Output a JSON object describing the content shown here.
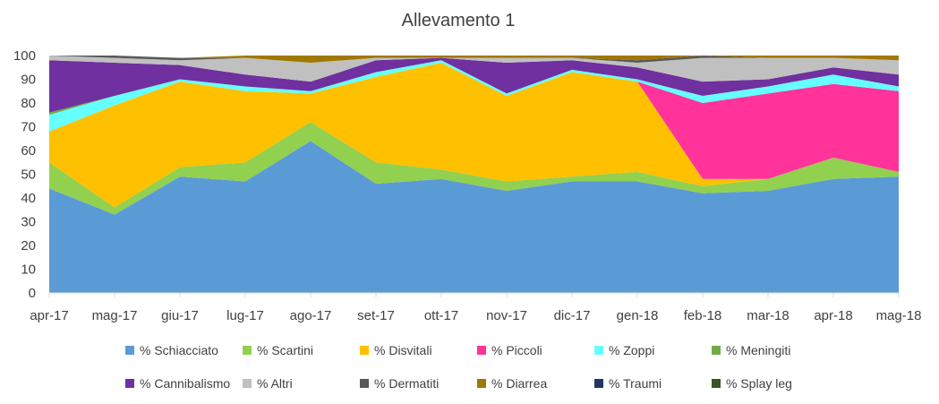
{
  "chart_data": {
    "type": "area",
    "stacked": true,
    "title": "Allevamento 1",
    "xlabel": "",
    "ylabel": "",
    "ylim": [
      0,
      100
    ],
    "yticks": [
      "0",
      "10",
      "20",
      "30",
      "40",
      "50",
      "60",
      "70",
      "80",
      "90",
      "100"
    ],
    "categories": [
      "apr-17",
      "mag-17",
      "giu-17",
      "lug-17",
      "ago-17",
      "set-17",
      "ott-17",
      "nov-17",
      "dic-17",
      "gen-18",
      "feb-18",
      "mar-18",
      "apr-18",
      "mag-18"
    ],
    "series": [
      {
        "name": "% Schiacciato",
        "color": "#5b9bd5",
        "values": [
          44,
          33,
          49,
          47,
          64,
          46,
          48,
          43,
          47,
          47,
          42,
          43,
          48,
          49
        ]
      },
      {
        "name": "% Scartini",
        "color": "#92d050",
        "values": [
          11,
          3,
          4,
          8,
          8,
          9,
          4,
          4,
          2,
          4,
          3,
          5,
          9,
          2
        ]
      },
      {
        "name": "% Disvitali",
        "color": "#ffc000",
        "values": [
          13,
          43,
          36,
          30,
          12,
          36,
          45,
          36,
          44,
          38,
          3,
          0,
          0,
          0
        ]
      },
      {
        "name": "% Piccoli",
        "color": "#ff3399",
        "values": [
          0,
          0,
          0,
          0,
          0,
          0,
          0,
          0,
          0,
          0,
          32,
          36,
          31,
          34
        ]
      },
      {
        "name": "% Zoppi",
        "color": "#66ffff",
        "values": [
          7,
          4,
          1,
          2,
          1,
          2,
          1,
          1,
          1,
          1,
          3,
          3,
          4,
          2
        ]
      },
      {
        "name": "% Meningiti",
        "color": "#70ad47",
        "values": [
          1,
          0,
          0,
          0,
          0,
          0,
          0,
          0,
          0,
          0,
          0,
          0,
          0,
          0
        ]
      },
      {
        "name": "% Cannibalismo",
        "color": "#7030a0",
        "values": [
          22,
          14,
          6,
          5,
          4,
          5,
          1,
          13,
          4,
          5,
          6,
          3,
          3,
          5
        ]
      },
      {
        "name": "% Altri",
        "color": "#c0c0c0",
        "values": [
          2,
          2,
          2,
          7,
          8,
          1,
          0,
          2,
          1,
          2,
          10,
          9,
          4,
          6
        ]
      },
      {
        "name": "% Dermatiti",
        "color": "#595959",
        "values": [
          0,
          1,
          1,
          0,
          0,
          0,
          0,
          0,
          0,
          1,
          1,
          0,
          0,
          0
        ]
      },
      {
        "name": "% Diarrea",
        "color": "#a07800",
        "values": [
          0,
          0,
          0,
          1,
          3,
          1,
          1,
          1,
          1,
          2,
          0,
          1,
          1,
          2
        ]
      },
      {
        "name": "% Traumi",
        "color": "#203864",
        "values": [
          0,
          0,
          0,
          0,
          0,
          0,
          0,
          0,
          0,
          0,
          0,
          0,
          0,
          0
        ]
      },
      {
        "name": "% Splay leg",
        "color": "#375623",
        "values": [
          0,
          0,
          0,
          0,
          0,
          0,
          0,
          0,
          0,
          0,
          0,
          0,
          0,
          0
        ]
      }
    ],
    "legend_position": "bottom"
  }
}
